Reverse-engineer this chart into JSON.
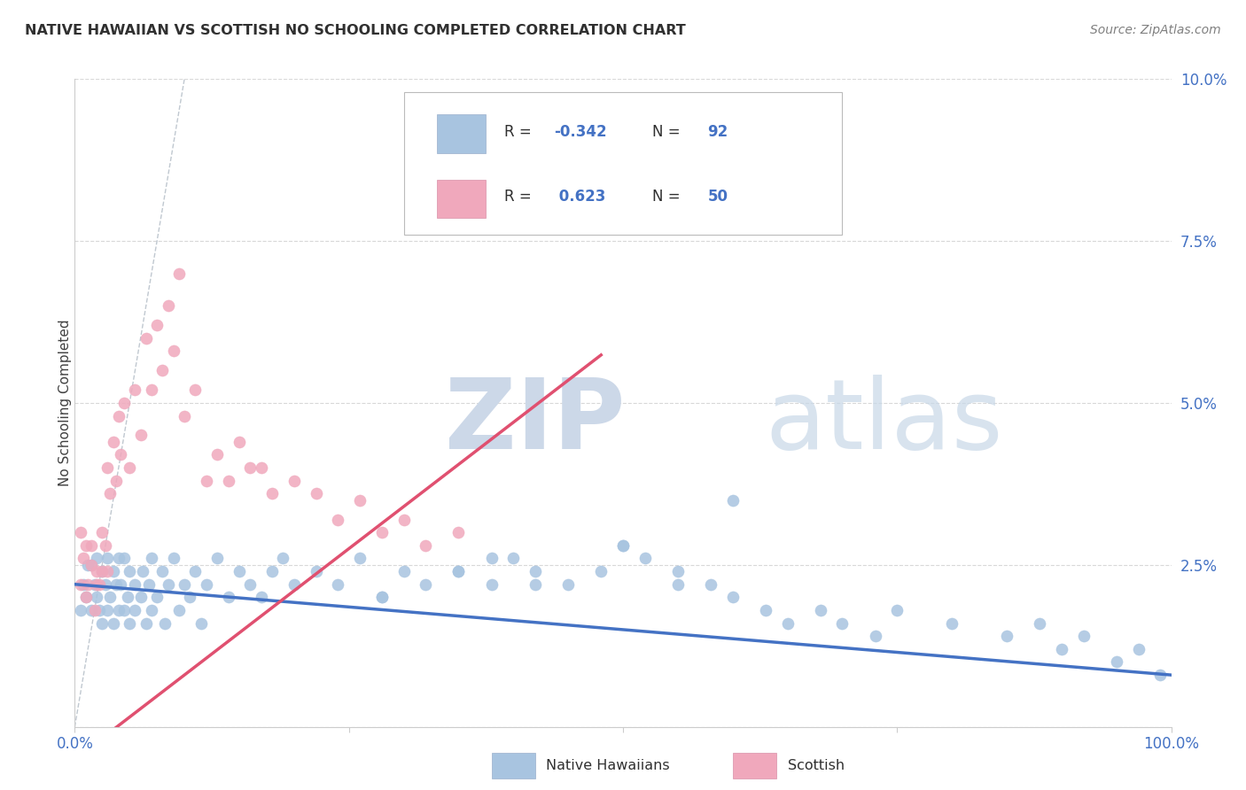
{
  "title": "NATIVE HAWAIIAN VS SCOTTISH NO SCHOOLING COMPLETED CORRELATION CHART",
  "source": "Source: ZipAtlas.com",
  "ylabel": "No Schooling Completed",
  "legend_label_blue": "Native Hawaiians",
  "legend_label_pink": "Scottish",
  "r_blue": -0.342,
  "n_blue": 92,
  "r_pink": 0.623,
  "n_pink": 50,
  "blue_scatter_color": "#a8c4e0",
  "pink_scatter_color": "#f0a8bc",
  "blue_line_color": "#4472c4",
  "pink_line_color": "#e05070",
  "diagonal_line_color": "#c0c8d0",
  "watermark_zip_color": "#ccd8e8",
  "watermark_atlas_color": "#c8d8e8",
  "grid_color": "#d8d8d8",
  "title_color": "#303030",
  "axis_tick_color": "#4472c4",
  "ylabel_color": "#404040",
  "source_color": "#808080",
  "blue_x": [
    0.005,
    0.008,
    0.01,
    0.012,
    0.015,
    0.015,
    0.018,
    0.02,
    0.02,
    0.022,
    0.025,
    0.025,
    0.028,
    0.03,
    0.03,
    0.032,
    0.035,
    0.035,
    0.038,
    0.04,
    0.04,
    0.042,
    0.045,
    0.045,
    0.048,
    0.05,
    0.05,
    0.055,
    0.055,
    0.06,
    0.062,
    0.065,
    0.068,
    0.07,
    0.07,
    0.075,
    0.08,
    0.082,
    0.085,
    0.09,
    0.095,
    0.1,
    0.105,
    0.11,
    0.115,
    0.12,
    0.13,
    0.14,
    0.15,
    0.16,
    0.17,
    0.18,
    0.19,
    0.2,
    0.22,
    0.24,
    0.26,
    0.28,
    0.3,
    0.32,
    0.35,
    0.38,
    0.4,
    0.42,
    0.45,
    0.48,
    0.5,
    0.52,
    0.55,
    0.58,
    0.6,
    0.63,
    0.65,
    0.68,
    0.7,
    0.73,
    0.75,
    0.8,
    0.85,
    0.88,
    0.9,
    0.92,
    0.95,
    0.97,
    0.99,
    0.5,
    0.55,
    0.38,
    0.35,
    0.42,
    0.28,
    0.6
  ],
  "blue_y": [
    0.018,
    0.022,
    0.02,
    0.025,
    0.025,
    0.018,
    0.022,
    0.026,
    0.02,
    0.018,
    0.024,
    0.016,
    0.022,
    0.026,
    0.018,
    0.02,
    0.024,
    0.016,
    0.022,
    0.026,
    0.018,
    0.022,
    0.026,
    0.018,
    0.02,
    0.024,
    0.016,
    0.022,
    0.018,
    0.02,
    0.024,
    0.016,
    0.022,
    0.026,
    0.018,
    0.02,
    0.024,
    0.016,
    0.022,
    0.026,
    0.018,
    0.022,
    0.02,
    0.024,
    0.016,
    0.022,
    0.026,
    0.02,
    0.024,
    0.022,
    0.02,
    0.024,
    0.026,
    0.022,
    0.024,
    0.022,
    0.026,
    0.02,
    0.024,
    0.022,
    0.024,
    0.022,
    0.026,
    0.024,
    0.022,
    0.024,
    0.028,
    0.026,
    0.024,
    0.022,
    0.02,
    0.018,
    0.016,
    0.018,
    0.016,
    0.014,
    0.018,
    0.016,
    0.014,
    0.016,
    0.012,
    0.014,
    0.01,
    0.012,
    0.008,
    0.028,
    0.022,
    0.026,
    0.024,
    0.022,
    0.02,
    0.035
  ],
  "pink_x": [
    0.005,
    0.008,
    0.01,
    0.012,
    0.015,
    0.018,
    0.02,
    0.022,
    0.025,
    0.025,
    0.028,
    0.03,
    0.03,
    0.032,
    0.035,
    0.038,
    0.04,
    0.042,
    0.045,
    0.05,
    0.055,
    0.06,
    0.065,
    0.07,
    0.075,
    0.08,
    0.085,
    0.09,
    0.095,
    0.1,
    0.11,
    0.12,
    0.13,
    0.14,
    0.15,
    0.16,
    0.17,
    0.18,
    0.2,
    0.22,
    0.24,
    0.26,
    0.28,
    0.3,
    0.32,
    0.35,
    0.005,
    0.01,
    0.015,
    0.02
  ],
  "pink_y": [
    0.022,
    0.026,
    0.02,
    0.022,
    0.028,
    0.018,
    0.024,
    0.022,
    0.03,
    0.024,
    0.028,
    0.024,
    0.04,
    0.036,
    0.044,
    0.038,
    0.048,
    0.042,
    0.05,
    0.04,
    0.052,
    0.045,
    0.06,
    0.052,
    0.062,
    0.055,
    0.065,
    0.058,
    0.07,
    0.048,
    0.052,
    0.038,
    0.042,
    0.038,
    0.044,
    0.04,
    0.04,
    0.036,
    0.038,
    0.036,
    0.032,
    0.035,
    0.03,
    0.032,
    0.028,
    0.03,
    0.03,
    0.028,
    0.025,
    0.022
  ],
  "xlim": [
    0.0,
    1.0
  ],
  "ylim": [
    0.0,
    0.1
  ]
}
